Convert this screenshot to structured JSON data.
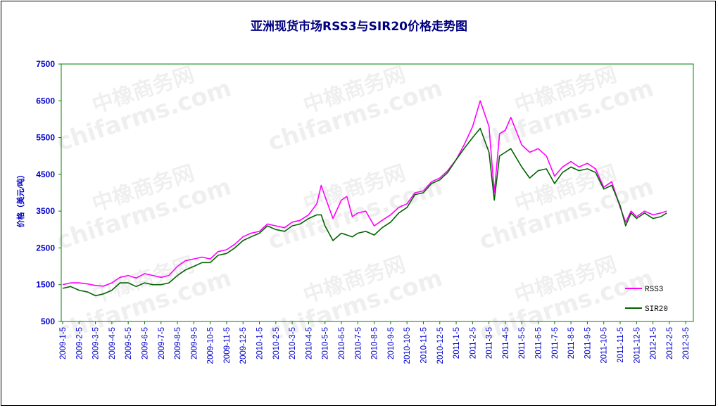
{
  "chart_data": {
    "type": "line",
    "title": "亚洲现货市场RSS3与SIR20价格走势图",
    "ylabel": "价格（美元/吨）",
    "xlabel": "",
    "ylim": [
      500,
      7500
    ],
    "yticks": [
      500,
      1500,
      2500,
      3500,
      4500,
      5500,
      6500,
      7500
    ],
    "x_tick_labels": [
      "2009-1-5",
      "2009-2-5",
      "2009-3-5",
      "2009-4-5",
      "2009-5-5",
      "2009-6-5",
      "2009-7-5",
      "2009-8-5",
      "2009-9-5",
      "2009-10-5",
      "2009-11-5",
      "2009-12-5",
      "2010-1-5",
      "2010-2-5",
      "2010-3-5",
      "2010-4-5",
      "2010-5-5",
      "2010-6-5",
      "2010-7-5",
      "2010-8-5",
      "2010-9-5",
      "2010-10-5",
      "2010-11-5",
      "2010-12-5",
      "2011-1-5",
      "2011-2-5",
      "2011-3-5",
      "2011-4-5",
      "2011-5-5",
      "2011-6-5",
      "2011-7-5",
      "2011-8-5",
      "2011-9-5",
      "2011-10-5",
      "2011-11-5",
      "2011-12-5",
      "2012-1-5",
      "2012-2-5",
      "2012-3-5"
    ],
    "grid": false,
    "legend_position": "bottom-right",
    "series": [
      {
        "name": "RSS3",
        "color": "#ff00ff",
        "points": [
          [
            "2009-1-5",
            1500
          ],
          [
            "2009-1-20",
            1550
          ],
          [
            "2009-2-5",
            1550
          ],
          [
            "2009-2-20",
            1520
          ],
          [
            "2009-3-5",
            1480
          ],
          [
            "2009-3-20",
            1460
          ],
          [
            "2009-4-5",
            1550
          ],
          [
            "2009-4-20",
            1700
          ],
          [
            "2009-5-5",
            1750
          ],
          [
            "2009-5-20",
            1680
          ],
          [
            "2009-6-5",
            1800
          ],
          [
            "2009-6-20",
            1750
          ],
          [
            "2009-7-5",
            1700
          ],
          [
            "2009-7-20",
            1750
          ],
          [
            "2009-8-5",
            2000
          ],
          [
            "2009-8-20",
            2150
          ],
          [
            "2009-9-5",
            2200
          ],
          [
            "2009-9-20",
            2250
          ],
          [
            "2009-10-5",
            2200
          ],
          [
            "2009-10-20",
            2400
          ],
          [
            "2009-11-5",
            2450
          ],
          [
            "2009-11-20",
            2600
          ],
          [
            "2009-12-5",
            2800
          ],
          [
            "2009-12-20",
            2900
          ],
          [
            "2010-1-5",
            2950
          ],
          [
            "2010-1-20",
            3150
          ],
          [
            "2010-2-5",
            3100
          ],
          [
            "2010-2-20",
            3050
          ],
          [
            "2010-3-5",
            3200
          ],
          [
            "2010-3-20",
            3250
          ],
          [
            "2010-4-5",
            3400
          ],
          [
            "2010-4-20",
            3700
          ],
          [
            "2010-4-28",
            4200
          ],
          [
            "2010-5-5",
            3900
          ],
          [
            "2010-5-20",
            3300
          ],
          [
            "2010-6-5",
            3800
          ],
          [
            "2010-6-15",
            3900
          ],
          [
            "2010-6-25",
            3350
          ],
          [
            "2010-7-5",
            3450
          ],
          [
            "2010-7-20",
            3500
          ],
          [
            "2010-8-5",
            3100
          ],
          [
            "2010-8-20",
            3250
          ],
          [
            "2010-9-5",
            3400
          ],
          [
            "2010-9-20",
            3600
          ],
          [
            "2010-10-5",
            3700
          ],
          [
            "2010-10-20",
            4000
          ],
          [
            "2010-11-5",
            4050
          ],
          [
            "2010-11-20",
            4300
          ],
          [
            "2010-12-5",
            4400
          ],
          [
            "2010-12-20",
            4600
          ],
          [
            "2011-1-5",
            4900
          ],
          [
            "2011-1-20",
            5300
          ],
          [
            "2011-2-5",
            5800
          ],
          [
            "2011-2-18",
            6500
          ],
          [
            "2011-3-5",
            5800
          ],
          [
            "2011-3-15",
            4000
          ],
          [
            "2011-3-25",
            5600
          ],
          [
            "2011-4-5",
            5700
          ],
          [
            "2011-4-15",
            6050
          ],
          [
            "2011-5-5",
            5300
          ],
          [
            "2011-5-20",
            5100
          ],
          [
            "2011-6-5",
            5200
          ],
          [
            "2011-6-20",
            5000
          ],
          [
            "2011-7-5",
            4450
          ],
          [
            "2011-7-20",
            4700
          ],
          [
            "2011-8-5",
            4850
          ],
          [
            "2011-8-20",
            4700
          ],
          [
            "2011-9-5",
            4800
          ],
          [
            "2011-9-20",
            4650
          ],
          [
            "2011-10-5",
            4150
          ],
          [
            "2011-10-20",
            4300
          ],
          [
            "2011-11-5",
            3600
          ],
          [
            "2011-11-15",
            3200
          ],
          [
            "2011-11-25",
            3500
          ],
          [
            "2011-12-5",
            3350
          ],
          [
            "2011-12-20",
            3500
          ],
          [
            "2012-1-5",
            3400
          ],
          [
            "2012-1-20",
            3450
          ],
          [
            "2012-1-31",
            3500
          ]
        ]
      },
      {
        "name": "SIR20",
        "color": "#006400",
        "points": [
          [
            "2009-1-5",
            1400
          ],
          [
            "2009-1-20",
            1450
          ],
          [
            "2009-2-5",
            1350
          ],
          [
            "2009-2-20",
            1300
          ],
          [
            "2009-3-5",
            1200
          ],
          [
            "2009-3-20",
            1250
          ],
          [
            "2009-4-5",
            1350
          ],
          [
            "2009-4-20",
            1550
          ],
          [
            "2009-5-5",
            1550
          ],
          [
            "2009-5-20",
            1450
          ],
          [
            "2009-6-5",
            1550
          ],
          [
            "2009-6-20",
            1500
          ],
          [
            "2009-7-5",
            1500
          ],
          [
            "2009-7-20",
            1550
          ],
          [
            "2009-8-5",
            1750
          ],
          [
            "2009-8-20",
            1900
          ],
          [
            "2009-9-5",
            2000
          ],
          [
            "2009-9-20",
            2100
          ],
          [
            "2009-10-5",
            2100
          ],
          [
            "2009-10-20",
            2300
          ],
          [
            "2009-11-5",
            2350
          ],
          [
            "2009-11-20",
            2500
          ],
          [
            "2009-12-5",
            2700
          ],
          [
            "2009-12-20",
            2800
          ],
          [
            "2010-1-5",
            2900
          ],
          [
            "2010-1-20",
            3100
          ],
          [
            "2010-2-5",
            3000
          ],
          [
            "2010-2-20",
            2950
          ],
          [
            "2010-3-5",
            3100
          ],
          [
            "2010-3-20",
            3150
          ],
          [
            "2010-4-5",
            3300
          ],
          [
            "2010-4-20",
            3400
          ],
          [
            "2010-4-28",
            3400
          ],
          [
            "2010-5-5",
            3100
          ],
          [
            "2010-5-20",
            2700
          ],
          [
            "2010-6-5",
            2900
          ],
          [
            "2010-6-15",
            2850
          ],
          [
            "2010-6-25",
            2800
          ],
          [
            "2010-7-5",
            2900
          ],
          [
            "2010-7-20",
            2950
          ],
          [
            "2010-8-5",
            2850
          ],
          [
            "2010-8-20",
            3050
          ],
          [
            "2010-9-5",
            3200
          ],
          [
            "2010-9-20",
            3450
          ],
          [
            "2010-10-5",
            3600
          ],
          [
            "2010-10-20",
            3950
          ],
          [
            "2010-11-5",
            4000
          ],
          [
            "2010-11-20",
            4250
          ],
          [
            "2010-12-5",
            4350
          ],
          [
            "2010-12-20",
            4550
          ],
          [
            "2011-1-5",
            4900
          ],
          [
            "2011-1-20",
            5200
          ],
          [
            "2011-2-5",
            5500
          ],
          [
            "2011-2-18",
            5750
          ],
          [
            "2011-3-5",
            5100
          ],
          [
            "2011-3-15",
            3800
          ],
          [
            "2011-3-25",
            5000
          ],
          [
            "2011-4-5",
            5100
          ],
          [
            "2011-4-15",
            5200
          ],
          [
            "2011-5-5",
            4700
          ],
          [
            "2011-5-20",
            4400
          ],
          [
            "2011-6-5",
            4600
          ],
          [
            "2011-6-20",
            4650
          ],
          [
            "2011-7-5",
            4250
          ],
          [
            "2011-7-20",
            4550
          ],
          [
            "2011-8-5",
            4700
          ],
          [
            "2011-8-20",
            4600
          ],
          [
            "2011-9-5",
            4650
          ],
          [
            "2011-9-20",
            4550
          ],
          [
            "2011-10-5",
            4100
          ],
          [
            "2011-10-20",
            4200
          ],
          [
            "2011-11-5",
            3650
          ],
          [
            "2011-11-15",
            3100
          ],
          [
            "2011-11-25",
            3450
          ],
          [
            "2011-12-5",
            3300
          ],
          [
            "2011-12-20",
            3450
          ],
          [
            "2012-1-5",
            3300
          ],
          [
            "2012-1-20",
            3350
          ],
          [
            "2012-1-31",
            3450
          ]
        ]
      }
    ]
  },
  "watermark": {
    "line1": "中橡商务网",
    "line2": "chifarms.com"
  }
}
